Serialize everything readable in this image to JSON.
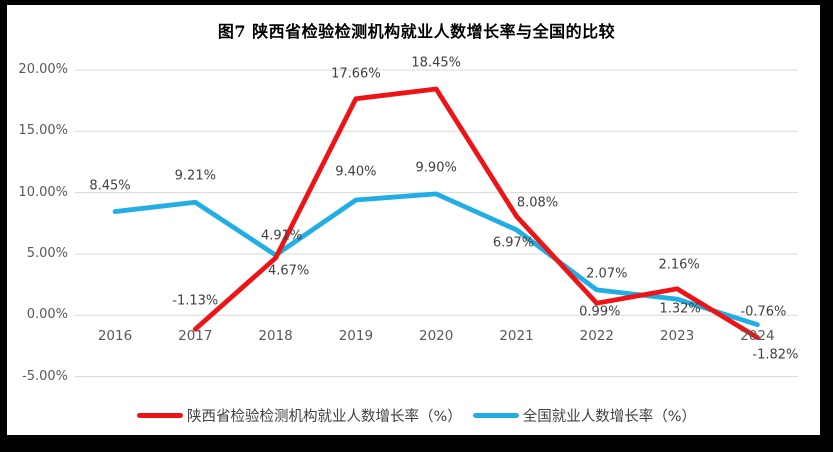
{
  "title": "图7 陕西省检验检测机构就业人数增长率与全国的比较",
  "chart_data": {
    "type": "line",
    "categories": [
      "2016",
      "2017",
      "2018",
      "2019",
      "2020",
      "2021",
      "2022",
      "2023",
      "2024"
    ],
    "series": [
      {
        "name": "陕西省检验检测机构就业人数增长率（%）",
        "color": "#ee1416",
        "values": [
          null,
          -1.13,
          4.67,
          17.66,
          18.45,
          8.08,
          0.99,
          2.16,
          -1.82
        ],
        "labels": [
          "",
          "-1.13%",
          "4.67%",
          "17.66%",
          "18.45%",
          "8.08%",
          "0.99%",
          "2.16%",
          "-1.82%"
        ]
      },
      {
        "name": "全国就业人数增长率（%）",
        "color": "#20aee5",
        "values": [
          8.45,
          9.21,
          4.91,
          9.4,
          9.9,
          6.97,
          2.07,
          1.32,
          -0.76
        ],
        "labels": [
          "8.45%",
          "9.21%",
          "4.91%",
          "9.40%",
          "9.90%",
          "6.97%",
          "2.07%",
          "1.32%",
          "-0.76%"
        ]
      }
    ],
    "y_ticks": [
      {
        "label": "20.00%",
        "value": 20
      },
      {
        "label": "15.00%",
        "value": 15
      },
      {
        "label": "10.00%",
        "value": 10
      },
      {
        "label": "5.00%",
        "value": 5
      },
      {
        "label": "0.00%",
        "value": 0
      },
      {
        "label": "-5.00%",
        "value": -5
      }
    ],
    "ylim": [
      -5,
      20
    ],
    "grid": true,
    "legend_position": "bottom"
  },
  "colors": {
    "shaanxi_line": "#ee1416",
    "national_line": "#20aee5",
    "gridline": "#d9d9d9",
    "axis_text": "#595959",
    "data_label_text": "#404040",
    "title_text": "#000000",
    "frame": "#000000",
    "background": "#ffffff"
  }
}
